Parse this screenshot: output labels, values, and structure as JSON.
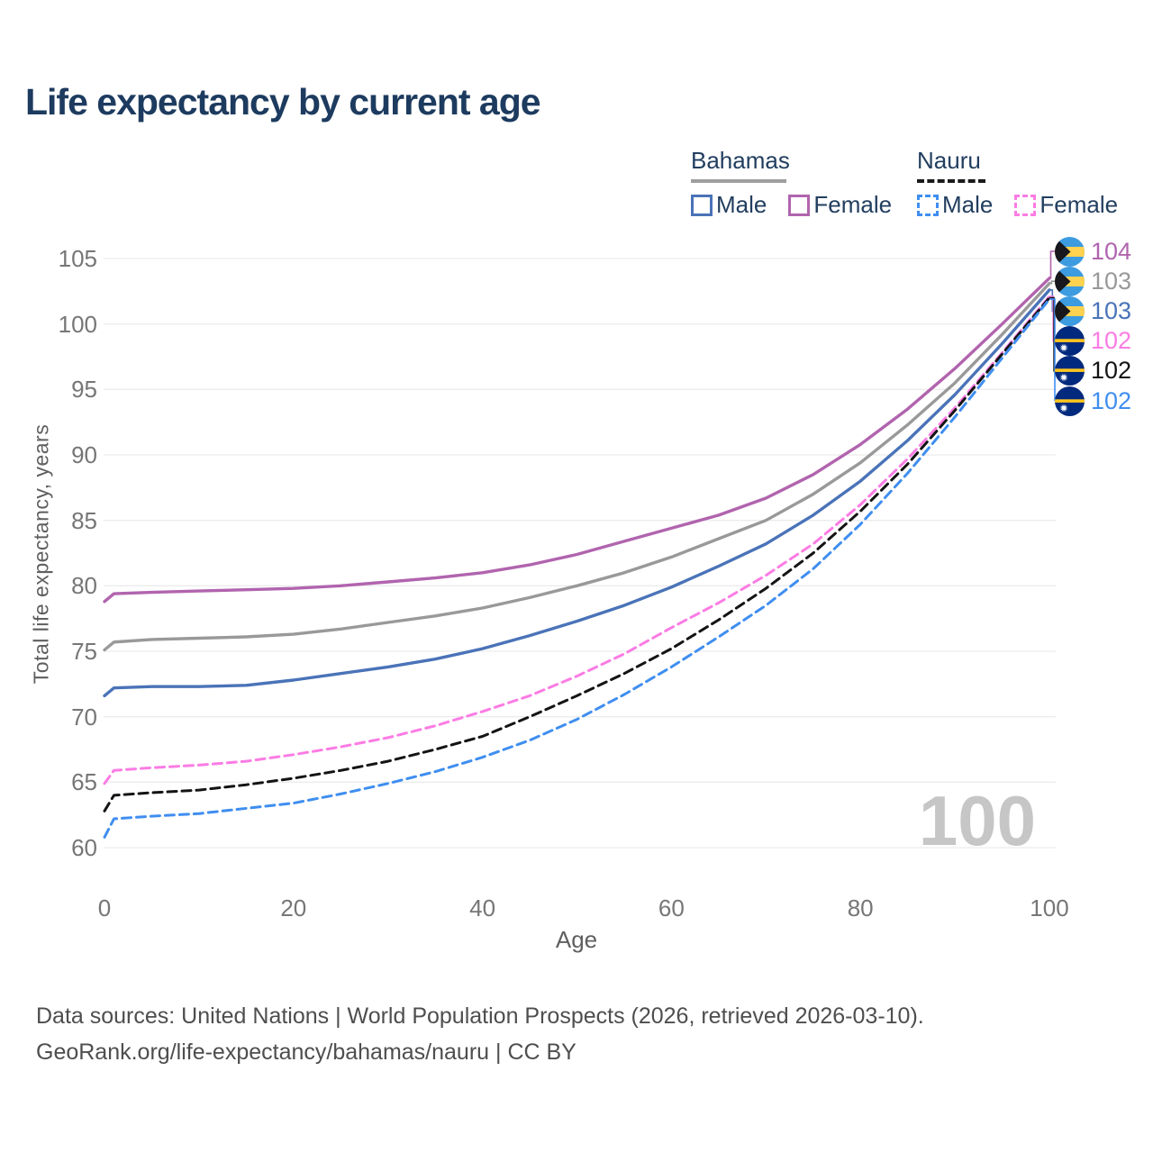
{
  "legend": {
    "bahamas": {
      "label": "Bahamas",
      "male": "Male",
      "female": "Female",
      "line_color": "#9e9e9e",
      "male_color": "#4a73b8",
      "female_color": "#b164ae",
      "line_style": "solid"
    },
    "nauru": {
      "label": "Nauru",
      "male": "Male",
      "female": "Female",
      "line_color": "#1a1a1a",
      "male_color": "#3f8ef0",
      "female_color": "#fb7ce4",
      "line_style": "dashed"
    }
  },
  "footer": {
    "line1": "Data sources: United Nations | World Population Prospects (2026, retrieved 2026-03-10).",
    "line2": "GeoRank.org/life-expectancy/bahamas/nauru | CC BY"
  },
  "chart_data": {
    "type": "line",
    "title": "Life expectancy by current age",
    "xlabel": "Age",
    "ylabel": "Total life expectancy, years",
    "xlim": [
      0,
      100
    ],
    "ylim": [
      60,
      105
    ],
    "xticks": [
      0,
      20,
      40,
      60,
      80,
      100
    ],
    "yticks": [
      60,
      65,
      70,
      75,
      80,
      85,
      90,
      95,
      100,
      105
    ],
    "grid": "horizontal",
    "gridline_color": "#ececec",
    "legend_position": "top-right",
    "watermark": "100",
    "x": [
      0,
      1,
      5,
      10,
      15,
      20,
      25,
      30,
      35,
      40,
      45,
      50,
      55,
      60,
      65,
      70,
      75,
      80,
      85,
      90,
      95,
      100
    ],
    "series": [
      {
        "name": "Bahamas Female",
        "country": "Bahamas",
        "sex": "Female",
        "style": "solid",
        "color": "#b164ae",
        "end_label": "104",
        "values": [
          78.8,
          79.4,
          79.5,
          79.6,
          79.7,
          79.8,
          80.0,
          80.3,
          80.6,
          81.0,
          81.6,
          82.4,
          83.4,
          84.4,
          85.4,
          86.7,
          88.5,
          90.8,
          93.5,
          96.6,
          100.0,
          103.5
        ]
      },
      {
        "name": "Bahamas Total",
        "country": "Bahamas",
        "sex": "Total",
        "style": "solid",
        "color": "#999999",
        "end_label": "103",
        "values": [
          75.1,
          75.7,
          75.9,
          76.0,
          76.1,
          76.3,
          76.7,
          77.2,
          77.7,
          78.3,
          79.1,
          80.0,
          81.0,
          82.2,
          83.6,
          85.0,
          87.0,
          89.4,
          92.3,
          95.5,
          99.2,
          103.1
        ]
      },
      {
        "name": "Bahamas Male",
        "country": "Bahamas",
        "sex": "Male",
        "style": "solid",
        "color": "#4a73b8",
        "end_label": "103",
        "values": [
          71.6,
          72.2,
          72.3,
          72.3,
          72.4,
          72.8,
          73.3,
          73.8,
          74.4,
          75.2,
          76.2,
          77.3,
          78.5,
          79.9,
          81.5,
          83.2,
          85.4,
          88.0,
          91.1,
          94.6,
          98.5,
          102.6
        ]
      },
      {
        "name": "Nauru Female",
        "country": "Nauru",
        "sex": "Female",
        "style": "dashed",
        "color": "#fb7ce4",
        "end_label": "102",
        "values": [
          64.9,
          65.9,
          66.1,
          66.3,
          66.6,
          67.1,
          67.7,
          68.4,
          69.3,
          70.4,
          71.6,
          73.1,
          74.8,
          76.8,
          78.7,
          80.8,
          83.2,
          86.2,
          89.7,
          93.6,
          97.8,
          102.1
        ]
      },
      {
        "name": "Nauru Total",
        "country": "Nauru",
        "sex": "Total",
        "style": "dashed",
        "color": "#141414",
        "end_label": "102",
        "values": [
          62.8,
          64.0,
          64.2,
          64.4,
          64.8,
          65.3,
          65.9,
          66.6,
          67.5,
          68.5,
          70.0,
          71.6,
          73.3,
          75.2,
          77.4,
          79.8,
          82.5,
          85.7,
          89.3,
          93.4,
          97.7,
          102.0
        ]
      },
      {
        "name": "Nauru Male",
        "country": "Nauru",
        "sex": "Male",
        "style": "dashed",
        "color": "#3f8ef0",
        "end_label": "102",
        "values": [
          60.8,
          62.2,
          62.4,
          62.6,
          63.0,
          63.4,
          64.1,
          64.9,
          65.8,
          66.9,
          68.2,
          69.8,
          71.7,
          73.8,
          76.1,
          78.5,
          81.3,
          84.7,
          88.6,
          92.9,
          97.4,
          101.9
        ]
      }
    ],
    "end_labels": [
      {
        "value": "104",
        "flag": "bahamas",
        "series": "Bahamas Female",
        "color": "#b164ae"
      },
      {
        "value": "103",
        "flag": "bahamas",
        "series": "Bahamas Total",
        "color": "#999999"
      },
      {
        "value": "103",
        "flag": "bahamas",
        "series": "Bahamas Male",
        "color": "#4a73b8"
      },
      {
        "value": "102",
        "flag": "nauru",
        "series": "Nauru Female",
        "color": "#fb7ce4"
      },
      {
        "value": "102",
        "flag": "nauru",
        "series": "Nauru Total",
        "color": "#141414"
      },
      {
        "value": "102",
        "flag": "nauru",
        "series": "Nauru Male",
        "color": "#3f8ef0"
      }
    ]
  }
}
